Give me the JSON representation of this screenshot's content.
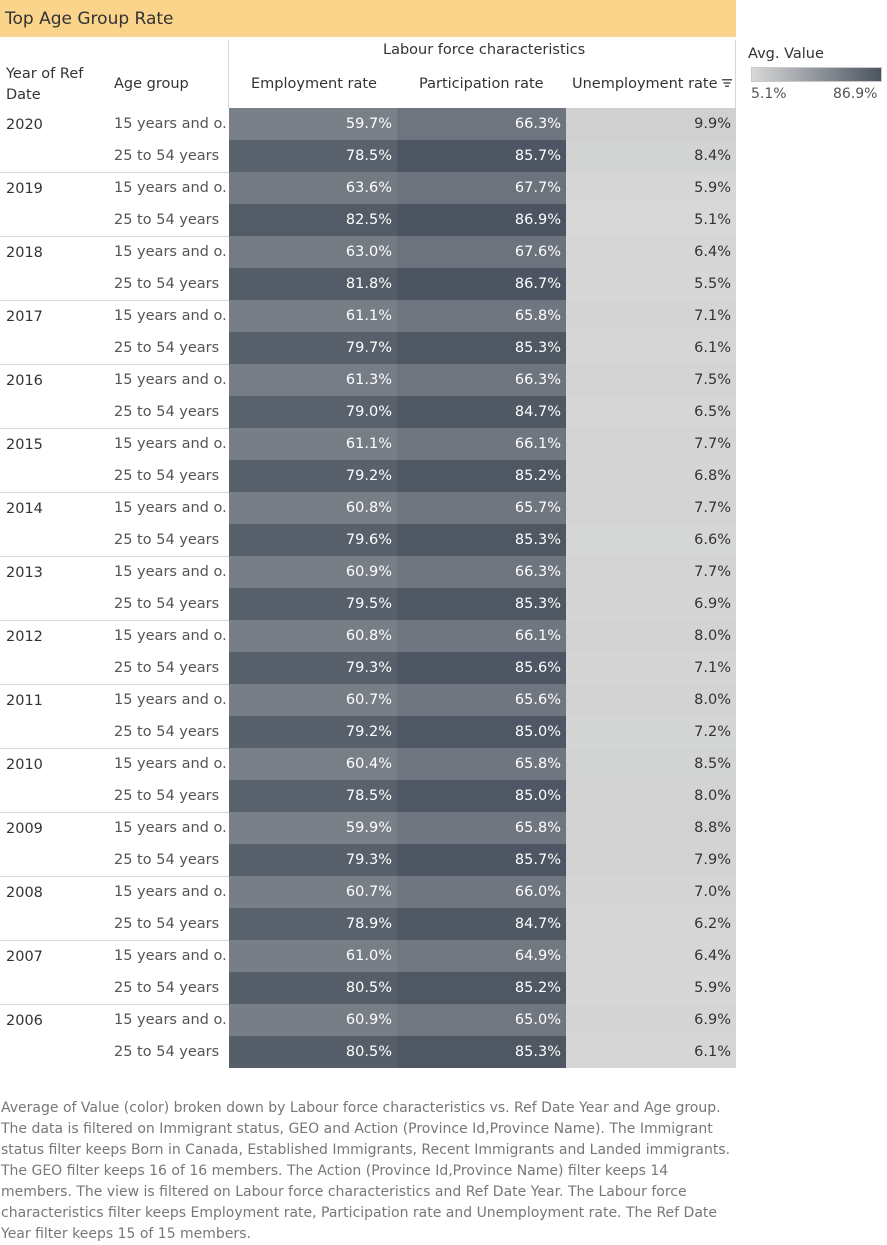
{
  "title": "Top Age Group Rate",
  "header": {
    "group_label": "Labour force characteristics",
    "year_col": "Year of Ref Date",
    "age_col": "Age group",
    "columns": [
      "Employment rate",
      "Participation rate",
      "Unemployment rate"
    ]
  },
  "legend": {
    "title": "Avg. Value",
    "min_label": "5.1%",
    "max_label": "86.9%"
  },
  "colors": {
    "low": "#d8d8d8",
    "high": "#4b5460",
    "title_bg": "#fbd48c"
  },
  "icons": {
    "sort": "sort-descending-icon"
  },
  "caption": "Average of Value (color) broken down by Labour force characteristics vs. Ref Date Year and Age group. The data is filtered on Immigrant status, GEO and Action (Province Id,Province Name). The Immigrant status filter keeps Born in Canada, Established Immigrants, Recent Immigrants and Landed immigrants. The GEO filter keeps 16 of 16 members. The Action (Province Id,Province Name) filter keeps 14 members. The view is filtered on Labour force characteristics and Ref Date Year. The Labour force characteristics filter keeps Employment rate, Participation rate and Unemployment rate. The Ref Date Year filter keeps 15 of 15 members.",
  "chart_data": {
    "type": "heatmap",
    "title": "Top Age Group Rate",
    "color_legend": "Avg. Value",
    "color_range": [
      5.1,
      86.9
    ],
    "unit": "%",
    "columns": [
      "Employment rate",
      "Participation rate",
      "Unemployment rate"
    ],
    "age_groups": [
      "15 years and o..",
      "25 to 54 years"
    ],
    "rows": [
      {
        "year": "2020",
        "values": [
          [
            59.7,
            66.3,
            9.9
          ],
          [
            78.5,
            85.7,
            8.4
          ]
        ]
      },
      {
        "year": "2019",
        "values": [
          [
            63.6,
            67.7,
            5.9
          ],
          [
            82.5,
            86.9,
            5.1
          ]
        ]
      },
      {
        "year": "2018",
        "values": [
          [
            63.0,
            67.6,
            6.4
          ],
          [
            81.8,
            86.7,
            5.5
          ]
        ]
      },
      {
        "year": "2017",
        "values": [
          [
            61.1,
            65.8,
            7.1
          ],
          [
            79.7,
            85.3,
            6.1
          ]
        ]
      },
      {
        "year": "2016",
        "values": [
          [
            61.3,
            66.3,
            7.5
          ],
          [
            79.0,
            84.7,
            6.5
          ]
        ]
      },
      {
        "year": "2015",
        "values": [
          [
            61.1,
            66.1,
            7.7
          ],
          [
            79.2,
            85.2,
            6.8
          ]
        ]
      },
      {
        "year": "2014",
        "values": [
          [
            60.8,
            65.7,
            7.7
          ],
          [
            79.6,
            85.3,
            6.6
          ]
        ]
      },
      {
        "year": "2013",
        "values": [
          [
            60.9,
            66.3,
            7.7
          ],
          [
            79.5,
            85.3,
            6.9
          ]
        ]
      },
      {
        "year": "2012",
        "values": [
          [
            60.8,
            66.1,
            8.0
          ],
          [
            79.3,
            85.6,
            7.1
          ]
        ]
      },
      {
        "year": "2011",
        "values": [
          [
            60.7,
            65.6,
            8.0
          ],
          [
            79.2,
            85.0,
            7.2
          ]
        ]
      },
      {
        "year": "2010",
        "values": [
          [
            60.4,
            65.8,
            8.5
          ],
          [
            78.5,
            85.0,
            8.0
          ]
        ]
      },
      {
        "year": "2009",
        "values": [
          [
            59.9,
            65.8,
            8.8
          ],
          [
            79.3,
            85.7,
            7.9
          ]
        ]
      },
      {
        "year": "2008",
        "values": [
          [
            60.7,
            66.0,
            7.0
          ],
          [
            78.9,
            84.7,
            6.2
          ]
        ]
      },
      {
        "year": "2007",
        "values": [
          [
            61.0,
            64.9,
            6.4
          ],
          [
            80.5,
            85.2,
            5.9
          ]
        ]
      },
      {
        "year": "2006",
        "values": [
          [
            60.9,
            65.0,
            6.9
          ],
          [
            80.5,
            85.3,
            6.1
          ]
        ]
      }
    ]
  }
}
